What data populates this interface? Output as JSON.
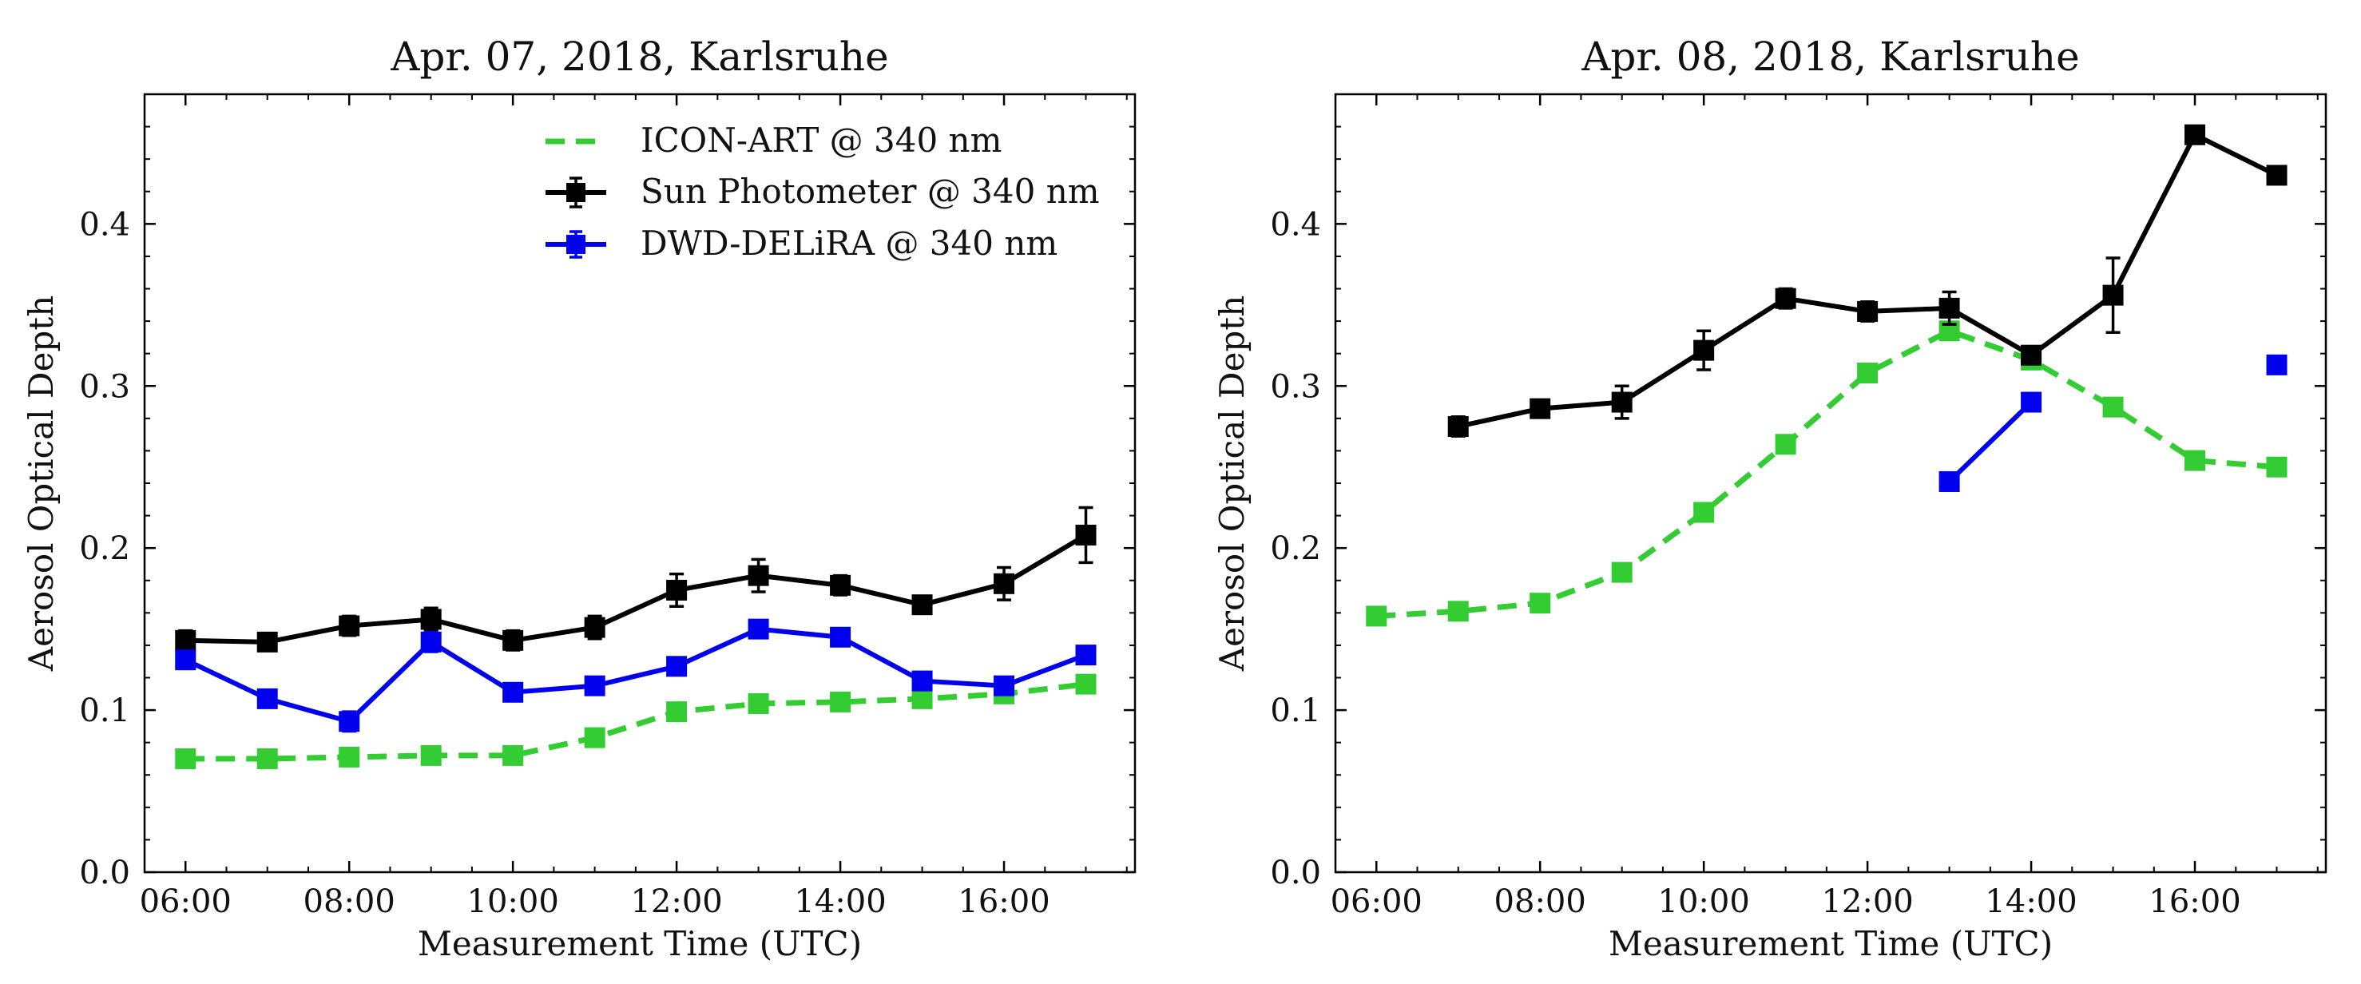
{
  "chart_data": [
    {
      "type": "line",
      "title": "Apr. 07, 2018, Karlsruhe",
      "xlabel": "Measurement Time (UTC)",
      "ylabel": "Aerosol Optical Depth",
      "xlim": [
        5.5,
        17.6
      ],
      "ylim": [
        0,
        0.48
      ],
      "xticks": [
        6,
        8,
        10,
        12,
        14,
        16
      ],
      "xtick_labels": [
        "06:00",
        "08:00",
        "10:00",
        "12:00",
        "14:00",
        "16:00"
      ],
      "yticks": [
        0.0,
        0.1,
        0.2,
        0.3,
        0.4
      ],
      "ytick_labels": [
        "0.0",
        "0.1",
        "0.2",
        "0.3",
        "0.4"
      ],
      "legend": {
        "position": "top-right",
        "entries": [
          "ICON-ART @ 340 nm",
          "Sun Photometer @ 340 nm",
          "DWD-DELiRA @ 340 nm"
        ]
      },
      "series": [
        {
          "name": "ICON-ART @ 340 nm",
          "color": "#33cc33",
          "dashed": true,
          "x": [
            6,
            7,
            8,
            9,
            10,
            11,
            12,
            13,
            14,
            15,
            16,
            17
          ],
          "y": [
            0.07,
            0.07,
            0.071,
            0.072,
            0.072,
            0.083,
            0.099,
            0.104,
            0.105,
            0.107,
            0.11,
            0.116
          ],
          "err": [
            0,
            0,
            0,
            0,
            0,
            0,
            0,
            0,
            0,
            0,
            0,
            0
          ]
        },
        {
          "name": "Sun Photometer @ 340 nm",
          "color": "#000000",
          "dashed": false,
          "x": [
            6,
            7,
            8,
            9,
            10,
            11,
            12,
            13,
            14,
            15,
            16,
            17
          ],
          "y": [
            0.143,
            0.142,
            0.152,
            0.156,
            0.143,
            0.151,
            0.174,
            0.183,
            0.177,
            0.165,
            0.178,
            0.208
          ],
          "err": [
            0.006,
            0.005,
            0.006,
            0.007,
            0.006,
            0.007,
            0.01,
            0.01,
            0.006,
            0.005,
            0.01,
            0.017
          ]
        },
        {
          "name": "DWD-DELiRA @ 340 nm",
          "color": "#0000ee",
          "dashed": false,
          "x": [
            6,
            7,
            8,
            9,
            10,
            11,
            12,
            13,
            14,
            15,
            16,
            17
          ],
          "y": [
            0.131,
            0.107,
            0.093,
            0.142,
            0.111,
            0.115,
            0.127,
            0.15,
            0.145,
            0.118,
            0.115,
            0.134
          ],
          "err": [
            0.005,
            0.005,
            0.006,
            0.006,
            0.005,
            0.005,
            0.005,
            0.005,
            0.005,
            0.005,
            0.005,
            0.005
          ]
        }
      ]
    },
    {
      "type": "line",
      "title": "Apr. 08, 2018, Karlsruhe",
      "xlabel": "Measurement Time (UTC)",
      "ylabel": "Aerosol Optical Depth",
      "xlim": [
        5.5,
        17.6
      ],
      "ylim": [
        0,
        0.48
      ],
      "xticks": [
        6,
        8,
        10,
        12,
        14,
        16
      ],
      "xtick_labels": [
        "06:00",
        "08:00",
        "10:00",
        "12:00",
        "14:00",
        "16:00"
      ],
      "yticks": [
        0.0,
        0.1,
        0.2,
        0.3,
        0.4
      ],
      "ytick_labels": [
        "0.0",
        "0.1",
        "0.2",
        "0.3",
        "0.4"
      ],
      "series": [
        {
          "name": "ICON-ART @ 340 nm",
          "color": "#33cc33",
          "dashed": true,
          "segments": [
            {
              "x": [
                6,
                7,
                8,
                9,
                10,
                11,
                12,
                13,
                14,
                15,
                16,
                17
              ],
              "y": [
                0.158,
                0.161,
                0.166,
                0.185,
                0.222,
                0.264,
                0.308,
                0.334,
                0.316,
                0.287,
                0.254,
                0.25
              ],
              "err": [
                0,
                0,
                0,
                0,
                0,
                0,
                0,
                0,
                0,
                0,
                0,
                0
              ]
            }
          ]
        },
        {
          "name": "Sun Photometer @ 340 nm",
          "color": "#000000",
          "dashed": false,
          "segments": [
            {
              "x": [
                7,
                8,
                9,
                10,
                11,
                12,
                13,
                14,
                15,
                16,
                17
              ],
              "y": [
                0.275,
                0.286,
                0.29,
                0.322,
                0.354,
                0.346,
                0.348,
                0.319,
                0.356,
                0.455,
                0.43
              ],
              "err": [
                0.006,
                0.005,
                0.01,
                0.012,
                0.006,
                0.006,
                0.01,
                0.004,
                0.023,
                0.005,
                0.005
              ]
            }
          ]
        },
        {
          "name": "DWD-DELiRA @ 340 nm",
          "color": "#0000ee",
          "dashed": false,
          "segments": [
            {
              "x": [
                13,
                14
              ],
              "y": [
                0.241,
                0.29
              ],
              "err": [
                0.005,
                0.005
              ]
            },
            {
              "x": [
                17
              ],
              "y": [
                0.313
              ],
              "err": [
                0.005
              ]
            }
          ]
        }
      ]
    }
  ]
}
